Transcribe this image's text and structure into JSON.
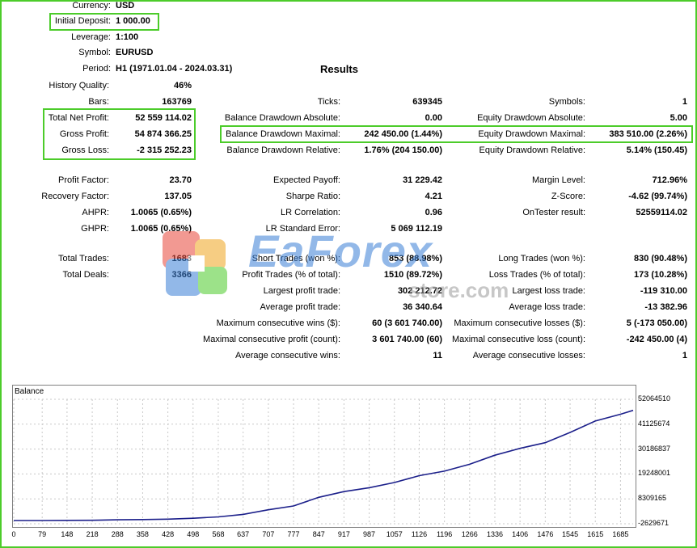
{
  "report": {
    "results_title": "Results",
    "settings": [
      {
        "label": "Currency:",
        "value": "USD"
      },
      {
        "label": "Initial Deposit:",
        "value": "1 000.00"
      },
      {
        "label": "Leverage:",
        "value": "1:100"
      },
      {
        "label": "Symbol:",
        "value": "EURUSD"
      },
      {
        "label": "Period:",
        "value": "H1 (1971.01.04 - 2024.03.31)"
      }
    ],
    "col1": [
      {
        "label": "History Quality:",
        "value": "46%"
      },
      {
        "label": "Bars:",
        "value": "163769"
      },
      {
        "label": "Total Net Profit:",
        "value": "52 559 114.02"
      },
      {
        "label": "Gross Profit:",
        "value": "54 874 366.25"
      },
      {
        "label": "Gross Loss:",
        "value": "-2 315 252.23"
      },
      {
        "label": "Profit Factor:",
        "value": "23.70"
      },
      {
        "label": "Recovery Factor:",
        "value": "137.05"
      },
      {
        "label": "AHPR:",
        "value": "1.0065 (0.65%)"
      },
      {
        "label": "GHPR:",
        "value": "1.0065 (0.65%)"
      },
      {
        "label": "Total Trades:",
        "value": "1683"
      },
      {
        "label": "Total Deals:",
        "value": "3366"
      }
    ],
    "col2": [
      {
        "label": "Ticks:",
        "value": "639345"
      },
      {
        "label": "Balance Drawdown Absolute:",
        "value": "0.00"
      },
      {
        "label": "Balance Drawdown Maximal:",
        "value": "242 450.00 (1.44%)"
      },
      {
        "label": "Balance Drawdown Relative:",
        "value": "1.76% (204 150.00)"
      },
      {
        "label": "Expected Payoff:",
        "value": "31 229.42"
      },
      {
        "label": "Sharpe Ratio:",
        "value": "4.21"
      },
      {
        "label": "LR Correlation:",
        "value": "0.96"
      },
      {
        "label": "LR Standard Error:",
        "value": "5 069 112.19"
      },
      {
        "label": "Short Trades (won %):",
        "value": "853 (88.98%)"
      },
      {
        "label": "Profit Trades (% of total):",
        "value": "1510 (89.72%)"
      },
      {
        "label": "Largest profit trade:",
        "value": "302 212.72"
      },
      {
        "label": "Average profit trade:",
        "value": "36 340.64"
      },
      {
        "label": "Maximum consecutive wins ($):",
        "value": "60 (3 601 740.00)"
      },
      {
        "label": "Maximal consecutive profit (count):",
        "value": "3 601 740.00 (60)"
      },
      {
        "label": "Average consecutive wins:",
        "value": "11"
      }
    ],
    "col3": [
      {
        "label": "Symbols:",
        "value": "1"
      },
      {
        "label": "Equity Drawdown Absolute:",
        "value": "5.00"
      },
      {
        "label": "Equity Drawdown Maximal:",
        "value": "383 510.00 (2.26%)"
      },
      {
        "label": "Equity Drawdown Relative:",
        "value": "5.14% (150.45)"
      },
      {
        "label": "Margin Level:",
        "value": "712.96%"
      },
      {
        "label": "Z-Score:",
        "value": "-4.62 (99.74%)"
      },
      {
        "label": "OnTester result:",
        "value": "52559114.02"
      },
      {
        "label": "Long Trades (won %):",
        "value": "830 (90.48%)"
      },
      {
        "label": "Loss Trades (% of total):",
        "value": "173 (10.28%)"
      },
      {
        "label": "Largest loss trade:",
        "value": "-119 310.00"
      },
      {
        "label": "Average loss trade:",
        "value": "-13 382.96"
      },
      {
        "label": "Maximum consecutive losses ($):",
        "value": "5 (-173 050.00)"
      },
      {
        "label": "Maximal consecutive loss (count):",
        "value": "-242 450.00 (4)"
      },
      {
        "label": "Average consecutive losses:",
        "value": "1"
      }
    ]
  },
  "watermark": {
    "brand": "EaForex",
    "sub": "store.com"
  },
  "chart_data": {
    "type": "line",
    "title": "Balance",
    "series": [
      {
        "x": [
          0,
          79,
          148,
          218,
          288,
          358,
          428,
          498,
          568,
          637,
          707,
          777,
          847,
          917,
          987,
          1057,
          1126,
          1196,
          1266,
          1336,
          1406,
          1476,
          1545,
          1615,
          1685,
          1720
        ],
        "y": [
          -1200000,
          -1200000,
          -1150000,
          -1100000,
          -900000,
          -800000,
          -600000,
          -200000,
          400000,
          1500000,
          3500000,
          5200000,
          9000000,
          11500000,
          13200000,
          15500000,
          18500000,
          20500000,
          23500000,
          27500000,
          30500000,
          33000000,
          37500000,
          42500000,
          45500000,
          47200000
        ]
      }
    ],
    "x_ticks": [
      "0",
      "79",
      "148",
      "218",
      "288",
      "358",
      "428",
      "498",
      "568",
      "637",
      "707",
      "777",
      "847",
      "917",
      "987",
      "1057",
      "1126",
      "1196",
      "1266",
      "1336",
      "1406",
      "1476",
      "1545",
      "1615",
      "1685"
    ],
    "y_ticks": [
      "52064510",
      "41125674",
      "30186837",
      "19248001",
      "8309165",
      "-2629671"
    ],
    "xlim": [
      0,
      1720
    ],
    "ylim": [
      -2629671,
      52064510
    ],
    "grid": true,
    "line_color": "#1b1f8a"
  }
}
